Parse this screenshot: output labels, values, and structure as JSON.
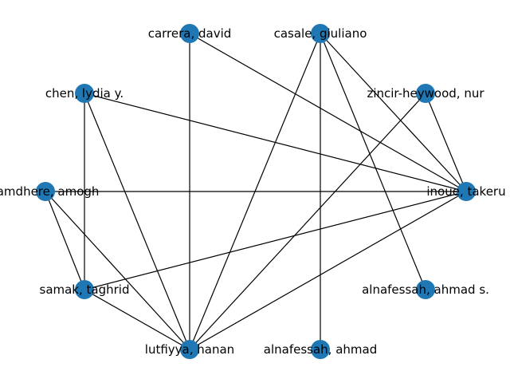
{
  "graph": {
    "node_color": "#1f77b4",
    "edge_color": "#000000",
    "nodes": [
      {
        "id": "carrera",
        "label": "carrera, david"
      },
      {
        "id": "casale",
        "label": "casale, giuliano"
      },
      {
        "id": "chen",
        "label": "chen, lydia y."
      },
      {
        "id": "zincir",
        "label": "zincir-heywood, nur"
      },
      {
        "id": "ramdhere",
        "label": "ramdhere, amogh"
      },
      {
        "id": "inoue",
        "label": "inoue, takeru"
      },
      {
        "id": "samak",
        "label": "samak, taghrid"
      },
      {
        "id": "alnafessah_s",
        "label": "alnafessah, ahmad s."
      },
      {
        "id": "lutfiyya",
        "label": "lutfiyya, hanan"
      },
      {
        "id": "alnafessah",
        "label": "alnafessah, ahmad"
      }
    ],
    "edges": [
      [
        "carrera",
        "lutfiyya"
      ],
      [
        "carrera",
        "inoue"
      ],
      [
        "casale",
        "lutfiyya"
      ],
      [
        "casale",
        "inoue"
      ],
      [
        "casale",
        "alnafessah"
      ],
      [
        "casale",
        "alnafessah_s"
      ],
      [
        "chen",
        "samak"
      ],
      [
        "chen",
        "lutfiyya"
      ],
      [
        "chen",
        "inoue"
      ],
      [
        "zincir",
        "inoue"
      ],
      [
        "zincir",
        "lutfiyya"
      ],
      [
        "ramdhere",
        "inoue"
      ],
      [
        "ramdhere",
        "samak"
      ],
      [
        "ramdhere",
        "lutfiyya"
      ],
      [
        "inoue",
        "samak"
      ],
      [
        "inoue",
        "lutfiyya"
      ],
      [
        "samak",
        "lutfiyya"
      ]
    ]
  }
}
